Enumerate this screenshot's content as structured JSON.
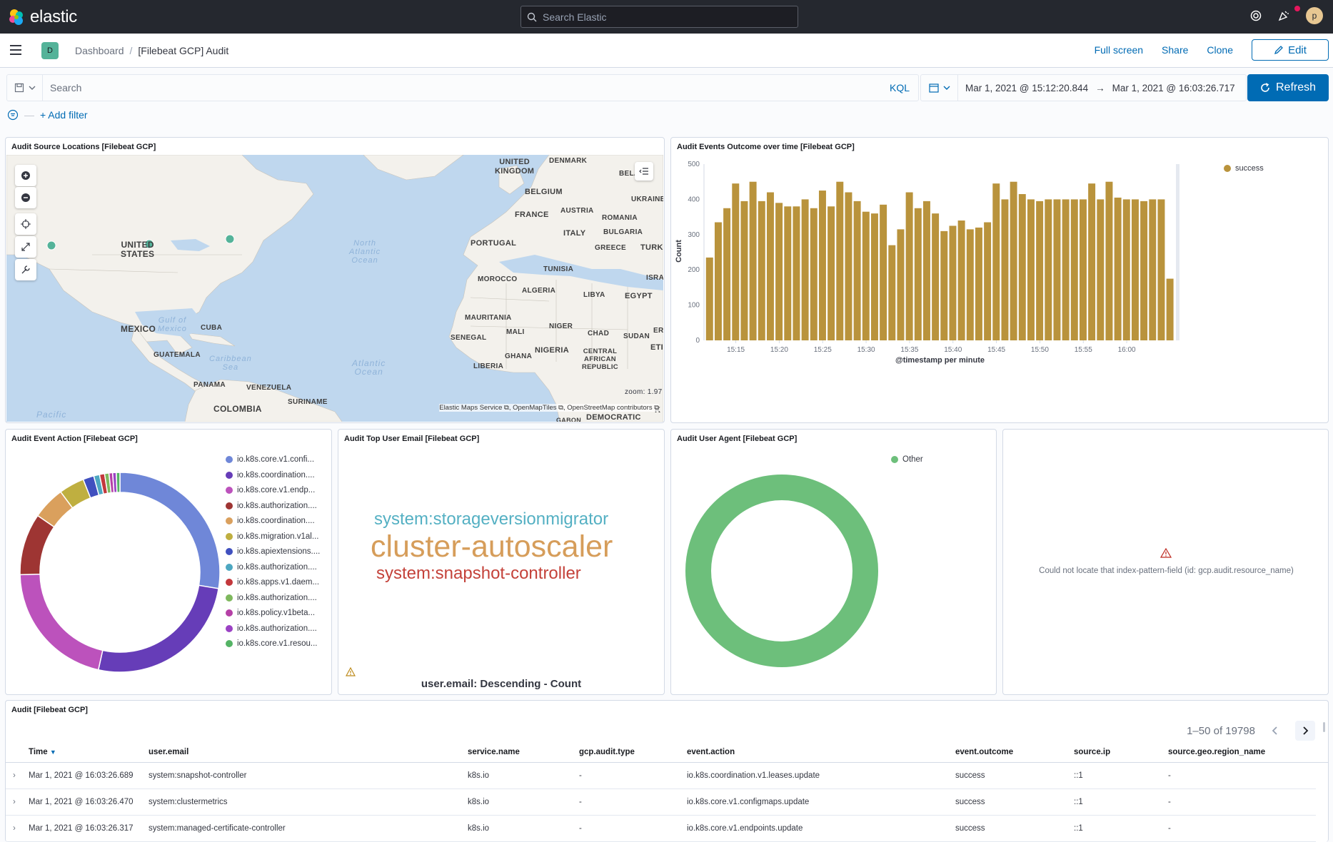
{
  "header": {
    "app_name": "elastic",
    "search_placeholder": "Search Elastic",
    "avatar_initial": "p"
  },
  "subheader": {
    "space_badge": "D",
    "breadcrumb": [
      "Dashboard",
      "[Filebeat GCP] Audit"
    ],
    "actions": [
      "Full screen",
      "Share",
      "Clone"
    ],
    "edit_label": "Edit"
  },
  "query": {
    "placeholder": "Search",
    "language": "KQL",
    "date_start": "Mar 1, 2021 @ 15:12:20.844",
    "date_arrow": "→",
    "date_end": "Mar 1, 2021 @ 16:03:26.717",
    "refresh_label": "Refresh",
    "add_filter": "+ Add filter"
  },
  "panels": {
    "map": {
      "title": "Audit Source Locations [Filebeat GCP]",
      "zoom": "zoom: 1.97",
      "attribution": "Elastic Maps Service ⧉, OpenMapTiles ⧉, OpenStreetMap contributors ⧉",
      "labels": [
        {
          "text": "UNITED\nKINGDOM"
        },
        {
          "text": "DENMARK"
        },
        {
          "text": "BELA"
        },
        {
          "text": "BELGIUM"
        },
        {
          "text": "UKRAINE"
        },
        {
          "text": "FRANCE"
        },
        {
          "text": "AUSTRIA"
        },
        {
          "text": "ROMANIA"
        },
        {
          "text": "ITALY"
        },
        {
          "text": "BULGARIA"
        },
        {
          "text": "PORTUGAL"
        },
        {
          "text": "GREECE"
        },
        {
          "text": "TURK"
        },
        {
          "text": "TUNISIA"
        },
        {
          "text": "ISRA"
        },
        {
          "text": "MOROCCO"
        },
        {
          "text": "ALGERIA"
        },
        {
          "text": "LIBYA"
        },
        {
          "text": "EGYPT"
        },
        {
          "text": "MAURITANIA"
        },
        {
          "text": "MALI"
        },
        {
          "text": "NIGER"
        },
        {
          "text": "CHAD"
        },
        {
          "text": "SUDAN"
        },
        {
          "text": "SENEGAL"
        },
        {
          "text": "NIGERIA"
        },
        {
          "text": "GHANA"
        },
        {
          "text": "LIBERIA"
        },
        {
          "text": "CENTRAL\nAFRICAN\nREPUBLIC"
        },
        {
          "text": "ETI"
        },
        {
          "text": "ER"
        },
        {
          "text": "DEMOCRATIC"
        },
        {
          "text": "GABON"
        },
        {
          "text": "K"
        },
        {
          "text": "UNITED\nSTATES"
        },
        {
          "text": "MEXICO"
        },
        {
          "text": "CUBA"
        },
        {
          "text": "GUATEMALA"
        },
        {
          "text": "PANAMA"
        },
        {
          "text": "VENEZUELA"
        },
        {
          "text": "COLOMBIA"
        },
        {
          "text": "SURINAME"
        }
      ],
      "seas": [
        {
          "text": "North\nAtlantic\nOcean"
        },
        {
          "text": "Gulf of\nMexico"
        },
        {
          "text": "Caribbean\nSea"
        },
        {
          "text": "Atlantic\nOcean"
        },
        {
          "text": "Pacific"
        }
      ]
    },
    "outcome": {
      "title": "Audit Events Outcome over time [Filebeat GCP]",
      "legend": "success",
      "color": "#b9933c"
    },
    "event_action": {
      "title": "Audit Event Action [Filebeat GCP]",
      "legend": [
        {
          "label": "io.k8s.core.v1.confi...",
          "color": "#6f87d8"
        },
        {
          "label": "io.k8s.coordination....",
          "color": "#663db8"
        },
        {
          "label": "io.k8s.core.v1.endp...",
          "color": "#bc52bc"
        },
        {
          "label": "io.k8s.authorization....",
          "color": "#9e3533"
        },
        {
          "label": "io.k8s.coordination....",
          "color": "#daa05d"
        },
        {
          "label": "io.k8s.migration.v1al...",
          "color": "#bfaf40"
        },
        {
          "label": "io.k8s.apiextensions....",
          "color": "#4050bf"
        },
        {
          "label": "io.k8s.authorization....",
          "color": "#4da7c1"
        },
        {
          "label": "io.k8s.apps.v1.daem...",
          "color": "#c3383c"
        },
        {
          "label": "io.k8s.authorization....",
          "color": "#7eb85d"
        },
        {
          "label": "io.k8s.policy.v1beta...",
          "color": "#b540a6"
        },
        {
          "label": "io.k8s.authorization....",
          "color": "#9b42c4"
        },
        {
          "label": "io.k8s.core.v1.resou...",
          "color": "#54b365"
        }
      ]
    },
    "top_user": {
      "title": "Audit Top User Email [Filebeat GCP]",
      "tags": [
        {
          "text": "system:storageversionmigrator",
          "color": "#54b0c3"
        },
        {
          "text": "cluster-autoscaler",
          "color": "#d69d5a"
        },
        {
          "text": "system:snapshot-controller",
          "color": "#c4423a"
        }
      ],
      "footer": "user.email: Descending - Count"
    },
    "user_agent": {
      "title": "Audit User Agent [Filebeat GCP]",
      "legend": "Other",
      "color": "#6dbf7b"
    },
    "resource": {
      "error": "Could not locate that index-pattern-field (id: gcp.audit.resource_name)"
    },
    "audit_table": {
      "title": "Audit [Filebeat GCP]",
      "pagination": "1–50 of 19798",
      "columns": [
        "Time",
        "user.email",
        "service.name",
        "gcp.audit.type",
        "event.action",
        "event.outcome",
        "source.ip",
        "source.geo.region_name"
      ],
      "rows": [
        [
          "Mar 1, 2021 @ 16:03:26.689",
          "system:snapshot-controller",
          "k8s.io",
          "-",
          "io.k8s.coordination.v1.leases.update",
          "success",
          "::1",
          "-"
        ],
        [
          "Mar 1, 2021 @ 16:03:26.470",
          "system:clustermetrics",
          "k8s.io",
          "-",
          "io.k8s.core.v1.configmaps.update",
          "success",
          "::1",
          "-"
        ],
        [
          "Mar 1, 2021 @ 16:03:26.317",
          "system:managed-certificate-controller",
          "k8s.io",
          "-",
          "io.k8s.core.v1.endpoints.update",
          "success",
          "::1",
          "-"
        ]
      ]
    }
  },
  "chart_data": [
    {
      "type": "bar",
      "title": "Audit Events Outcome over time [Filebeat GCP]",
      "xlabel": "@timestamp per minute",
      "ylabel": "Count",
      "ylim": [
        0,
        500
      ],
      "yticks": [
        0,
        100,
        200,
        300,
        400,
        500
      ],
      "xticks": [
        "15:15",
        "15:20",
        "15:25",
        "15:30",
        "15:35",
        "15:40",
        "15:45",
        "15:50",
        "15:55",
        "16:00"
      ],
      "series": [
        {
          "name": "success",
          "values": [
            235,
            335,
            375,
            445,
            395,
            450,
            395,
            420,
            390,
            380,
            380,
            400,
            375,
            425,
            380,
            450,
            420,
            395,
            365,
            360,
            385,
            270,
            315,
            420,
            375,
            395,
            360,
            310,
            325,
            340,
            315,
            320,
            335,
            445,
            400,
            450,
            415,
            400,
            395,
            400,
            400,
            400,
            400,
            400,
            445,
            400,
            450,
            405,
            400,
            400,
            395,
            400,
            400,
            175
          ]
        }
      ],
      "legend": "top-right"
    },
    {
      "type": "pie",
      "title": "Audit Event Action [Filebeat GCP]",
      "categories": [
        "io.k8s.core.v1.confi...",
        "io.k8s.coordination....",
        "io.k8s.core.v1.endp...",
        "io.k8s.authorization....",
        "io.k8s.coordination....",
        "io.k8s.migration.v1al...",
        "io.k8s.apiextensions....",
        "io.k8s.authorization....",
        "io.k8s.apps.v1.daem...",
        "io.k8s.authorization....",
        "io.k8s.policy.v1beta...",
        "io.k8s.authorization....",
        "io.k8s.core.v1.resou..."
      ],
      "values": [
        23.5,
        22,
        18,
        8.5,
        4.5,
        3.5,
        1.5,
        0.8,
        0.7,
        0.6,
        0.5,
        0.5,
        0.5
      ]
    },
    {
      "type": "pie",
      "title": "Audit User Agent [Filebeat GCP]",
      "categories": [
        "Other"
      ],
      "values": [
        100
      ]
    }
  ]
}
